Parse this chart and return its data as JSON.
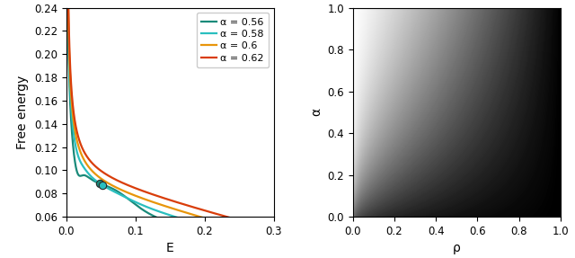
{
  "left_panel": {
    "alphas": [
      0.56,
      0.58,
      0.6,
      0.62
    ],
    "colors": [
      "#1a8a7a",
      "#2abfbf",
      "#e8950a",
      "#d93d0a"
    ],
    "ylim": [
      0.06,
      0.24
    ],
    "xlim": [
      0.0,
      0.3
    ],
    "xlabel": "E",
    "ylabel": "Free energy",
    "xticks": [
      0.0,
      0.1,
      0.2,
      0.3
    ],
    "yticks": [
      0.06,
      0.08,
      0.1,
      0.12,
      0.14,
      0.16,
      0.18,
      0.2,
      0.22,
      0.24
    ],
    "legend_labels": [
      "α = 0.56",
      "α = 0.58",
      "α = 0.6",
      "α = 0.62"
    ],
    "marker_E": [
      0.068,
      0.073
    ],
    "marker_alpha_idx": [
      0,
      1
    ]
  },
  "right_panel": {
    "xlabel": "ρ",
    "ylabel": "α",
    "xlim": [
      0.0,
      1.0
    ],
    "ylim": [
      0.0,
      1.0
    ],
    "xticks": [
      0.0,
      0.2,
      0.4,
      0.6,
      0.8,
      1.0
    ],
    "yticks": [
      0.0,
      0.2,
      0.4,
      0.6,
      0.8,
      1.0
    ]
  }
}
